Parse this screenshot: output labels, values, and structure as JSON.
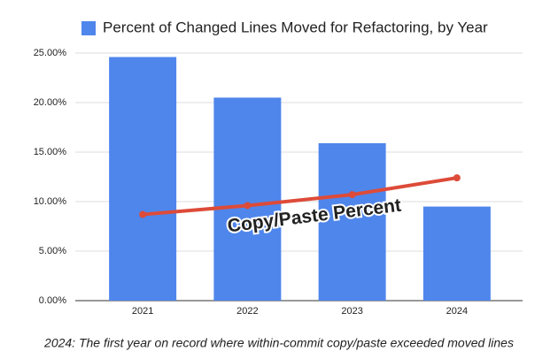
{
  "chart_data": {
    "type": "bar",
    "categories": [
      "2021",
      "2022",
      "2023",
      "2024"
    ],
    "series": [
      {
        "name": "Percent of Changed Lines Moved for Refactoring, by Year",
        "type": "bar",
        "color": "#4f86ec",
        "values": [
          24.6,
          20.5,
          15.9,
          9.5
        ]
      },
      {
        "name": "Copy/Paste Percent",
        "type": "line",
        "color": "#dd4b39",
        "values": [
          8.7,
          9.6,
          10.7,
          12.4
        ]
      }
    ],
    "ylim": [
      0,
      25
    ],
    "yticks": [
      {
        "value": 0,
        "label": "0.00%"
      },
      {
        "value": 5,
        "label": "5.00%"
      },
      {
        "value": 10,
        "label": "10.00%"
      },
      {
        "value": 15,
        "label": "15.00%"
      },
      {
        "value": 20,
        "label": "20.00%"
      },
      {
        "value": 25,
        "label": "25.00%"
      }
    ],
    "grid": true,
    "caption": "2024: The first year on record where within-commit copy/paste exceeded moved lines"
  }
}
